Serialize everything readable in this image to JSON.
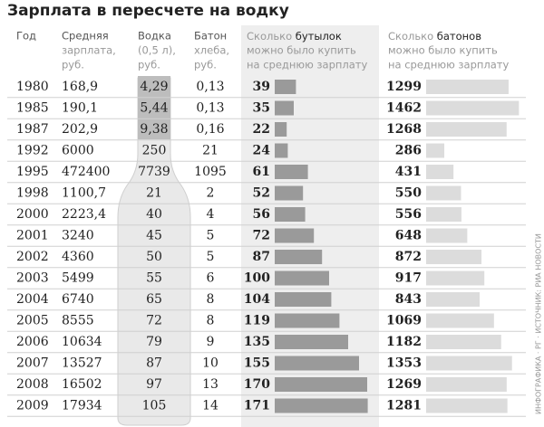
{
  "title": "Зарплата в пересчете на водку",
  "headers": [
    {
      "lines": [
        "Год"
      ]
    },
    {
      "lines": [
        "Средняя",
        "зарплата,",
        "руб."
      ]
    },
    {
      "lines": [
        "Водка",
        "(0,5 л),",
        "руб."
      ]
    },
    {
      "lines": [
        "Батон",
        "хлеба,",
        "руб."
      ]
    },
    {
      "pre": "Сколько ",
      "bold": "бутылок",
      "lines": [
        "можно было купить",
        "на среднюю зарплату"
      ]
    },
    {
      "pre": "Сколько ",
      "bold": "батонов",
      "lines": [
        "можно было купить",
        "на среднюю зарплату"
      ]
    }
  ],
  "rows": [
    [
      "1980",
      "168,9",
      "4,29",
      "0,13",
      39,
      1299
    ],
    [
      "1985",
      "190,1",
      "5,44",
      "0,13",
      35,
      1462
    ],
    [
      "1987",
      "202,9",
      "9,38",
      "0,16",
      22,
      1268
    ],
    [
      "1992",
      "6000",
      "250",
      "21",
      24,
      286
    ],
    [
      "1995",
      "472400",
      "7739",
      "1095",
      61,
      431
    ],
    [
      "1998",
      "1100,7",
      "21",
      "2",
      52,
      550
    ],
    [
      "2000",
      "2223,4",
      "40",
      "4",
      56,
      556
    ],
    [
      "2001",
      "3240",
      "45",
      "5",
      72,
      648
    ],
    [
      "2002",
      "4360",
      "50",
      "5",
      87,
      872
    ],
    [
      "2003",
      "5499",
      "55",
      "6",
      100,
      917
    ],
    [
      "2004",
      "6740",
      "65",
      "8",
      104,
      843
    ],
    [
      "2005",
      "8555",
      "72",
      "8",
      119,
      1069
    ],
    [
      "2006",
      "10634",
      "79",
      "9",
      135,
      1182
    ],
    [
      "2007",
      "13527",
      "87",
      "10",
      155,
      1353
    ],
    [
      "2008",
      "16502",
      "97",
      "13",
      170,
      1269
    ],
    [
      "2009",
      "17934",
      "105",
      "14",
      171,
      1281
    ]
  ],
  "credit": "ИНФОГРАФИКА · РГ · ИСТОЧНИК: РИА НОВОСТИ"
}
